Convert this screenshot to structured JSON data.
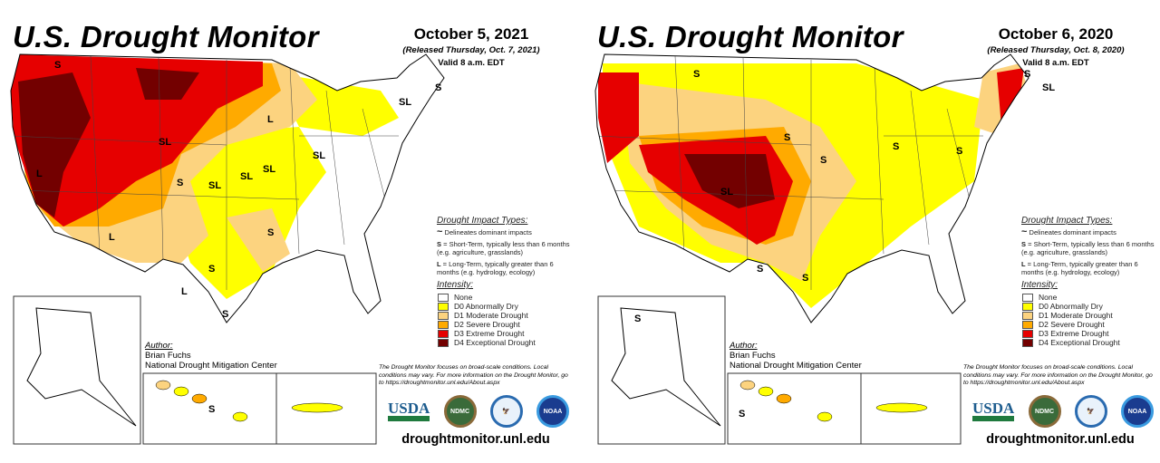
{
  "legend_colors": {
    "none": "#ffffff",
    "d0": "#ffff00",
    "d1": "#fcd37f",
    "d2": "#ffaa00",
    "d3": "#e60000",
    "d4": "#730000"
  },
  "panels": [
    {
      "title": "U.S. Drought Monitor",
      "date": "October 5, 2021",
      "released": "(Released Thursday, Oct. 7, 2021)",
      "valid": "Valid 8 a.m. EDT",
      "author_label": "Author:",
      "author_name": "Brian Fuchs",
      "author_org": "National Drought Mitigation Center",
      "map_labels": [
        "S",
        "S",
        "SL",
        "SL",
        "L",
        "SL",
        "S",
        "SL",
        "SL",
        "L",
        "L",
        "S",
        "L",
        "S",
        "S",
        "SL",
        "S"
      ]
    },
    {
      "title": "U.S. Drought Monitor",
      "date": "October 6, 2020",
      "released": "(Released Thursday, Oct. 8, 2020)",
      "valid": "Valid 8 a.m. EDT",
      "author_label": "Author:",
      "author_name": "Brian Fuchs",
      "author_org": "National Drought Mitigation Center",
      "map_labels": [
        "S",
        "SL",
        "S",
        "S",
        "SL",
        "S",
        "S",
        "S",
        "S",
        "S",
        "S",
        "S"
      ]
    }
  ],
  "legend": {
    "impact_title": "Drought Impact Types:",
    "delineates": "Delineates dominant impacts",
    "short_term_key": "S",
    "short_term": " = Short-Term, typically less than 6 months (e.g. agriculture, grasslands)",
    "long_term_key": "L",
    "long_term": " = Long-Term, typically greater than 6 months (e.g. hydrology, ecology)",
    "intensity_title": "Intensity:",
    "items": [
      {
        "key": "none",
        "label": "None"
      },
      {
        "key": "d0",
        "label": "D0 Abnormally Dry"
      },
      {
        "key": "d1",
        "label": "D1 Moderate Drought"
      },
      {
        "key": "d2",
        "label": "D2 Severe Drought"
      },
      {
        "key": "d3",
        "label": "D3 Extreme Drought"
      },
      {
        "key": "d4",
        "label": "D4 Exceptional Drought"
      }
    ]
  },
  "footer": {
    "note": "The Drought Monitor focuses on broad-scale conditions. Local conditions may vary. For more information on the Drought Monitor, go to https://droughtmonitor.unl.edu/About.aspx",
    "logos": [
      "USDA",
      "NDMC",
      "DOC",
      "NOAA"
    ],
    "url": "droughtmonitor.unl.edu"
  }
}
